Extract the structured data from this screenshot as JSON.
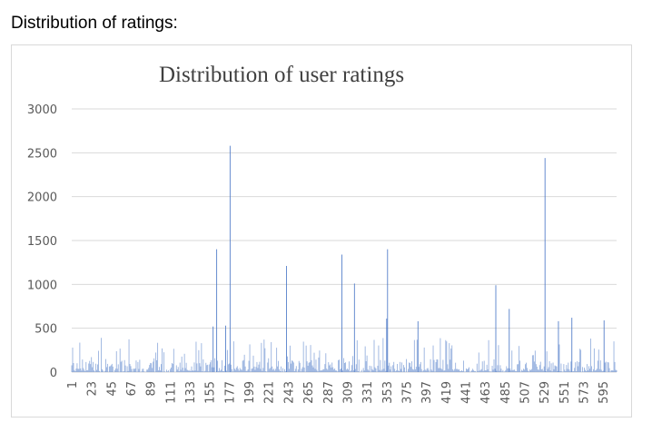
{
  "heading": "Distribution of ratings:",
  "colors": {
    "bar": "#4472c4",
    "grid": "#d9d9d9",
    "text": "#595959"
  },
  "chart_data": {
    "type": "bar",
    "title": "Distribution of user ratings",
    "xlabel": "",
    "ylabel": "",
    "ylim": [
      0,
      3000
    ],
    "yticks": [
      0,
      500,
      1000,
      1500,
      2000,
      2500,
      3000
    ],
    "xtick_labels": [
      "1",
      "23",
      "45",
      "67",
      "89",
      "111",
      "133",
      "155",
      "177",
      "199",
      "221",
      "243",
      "265",
      "287",
      "309",
      "331",
      "353",
      "375",
      "397",
      "419",
      "441",
      "463",
      "485",
      "507",
      "529",
      "551",
      "573",
      "595"
    ],
    "x_range": [
      1,
      610
    ],
    "grid": true,
    "legend": "none",
    "notable_values": [
      {
        "x": 178,
        "y": 2580
      },
      {
        "x": 530,
        "y": 2440
      },
      {
        "x": 163,
        "y": 1400
      },
      {
        "x": 354,
        "y": 1400
      },
      {
        "x": 303,
        "y": 1340
      },
      {
        "x": 241,
        "y": 1210
      },
      {
        "x": 317,
        "y": 1010
      },
      {
        "x": 475,
        "y": 990
      },
      {
        "x": 490,
        "y": 720
      },
      {
        "x": 353,
        "y": 610
      },
      {
        "x": 388,
        "y": 580
      },
      {
        "x": 560,
        "y": 620
      },
      {
        "x": 596,
        "y": 590
      },
      {
        "x": 545,
        "y": 580
      },
      {
        "x": 173,
        "y": 530
      },
      {
        "x": 159,
        "y": 520
      }
    ],
    "typical_value_range": [
      0,
      400
    ]
  }
}
